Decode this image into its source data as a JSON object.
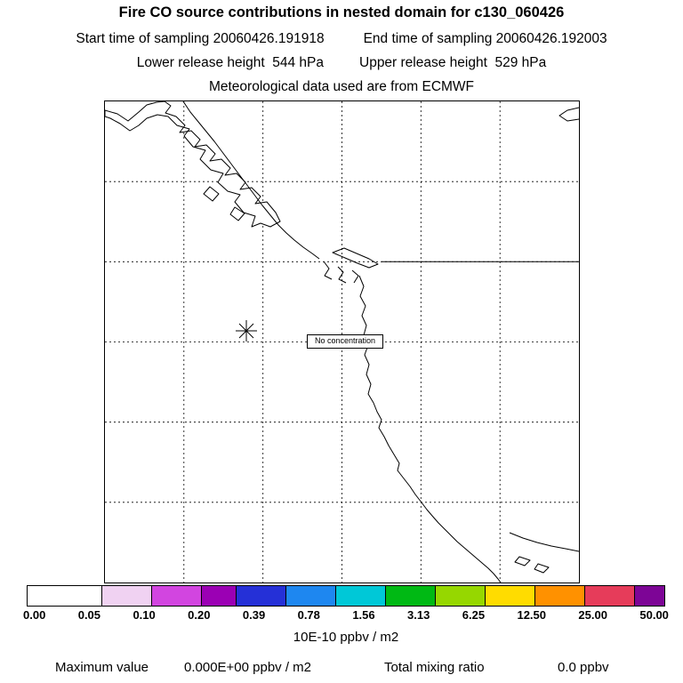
{
  "header": {
    "title": "Fire CO source contributions in nested domain for c130_060426",
    "start_time": "Start time of sampling 20060426.191918",
    "end_time": "End time of sampling 20060426.192003",
    "lower_release": "Lower release height  544 hPa",
    "upper_release": "Upper release height  529 hPa",
    "meteo": "Meteorological data used are from ECMWF"
  },
  "map": {
    "annotation": "No concentration",
    "marker": "release-point-asterisk"
  },
  "colorbar": {
    "tick_labels": [
      "0.00",
      "0.05",
      "0.10",
      "0.20",
      "0.39",
      "0.78",
      "1.56",
      "3.13",
      "6.25",
      "12.50",
      "25.00",
      "50.00"
    ],
    "segment_colors": [
      "#ffffff",
      "#f0d2f2",
      "#d245e0",
      "#9b00b4",
      "#2530d7",
      "#1e87f0",
      "#00c8d7",
      "#00b914",
      "#96d700",
      "#ffdc00",
      "#ff9100",
      "#e63c5a",
      "#7d0596"
    ],
    "units_label": "10E-10 ppbv / m2"
  },
  "footer": {
    "max_label": "Maximum value",
    "max_value": "0.000E+00 ppbv / m2",
    "ratio_label": "Total mixing ratio",
    "ratio_value": "0.0 ppbv"
  },
  "chart_data": {
    "type": "heatmap",
    "title": "Fire CO source contributions in nested domain for c130_060426",
    "subtitle": [
      "Start time of sampling 20060426.191918",
      "End time of sampling 20060426.192003",
      "Lower release height 544 hPa",
      "Upper release height 529 hPa",
      "Meteorological data used are from ECMWF"
    ],
    "region": "US Pacific Northwest coast (Vancouver Island, Washington, Oregon, N. California)",
    "grid": "on, 6x6 dashed graticule",
    "colorbar_thresholds": [
      0.0,
      0.05,
      0.1,
      0.2,
      0.39,
      0.78,
      1.56,
      3.13,
      6.25,
      12.5,
      25.0,
      50.0
    ],
    "colorbar_units": "10E-10 ppbv / m2",
    "values": "no concentration shown anywhere in domain (field all below lowest threshold)",
    "maximum_value": "0.000E+00 ppbv / m2",
    "total_mixing_ratio_ppbv": 0.0,
    "annotations": [
      "No concentration"
    ],
    "release_point_marker": {
      "x_frac": 0.3,
      "y_frac": 0.48
    },
    "legend_position": "bottom horizontal colorbar"
  }
}
